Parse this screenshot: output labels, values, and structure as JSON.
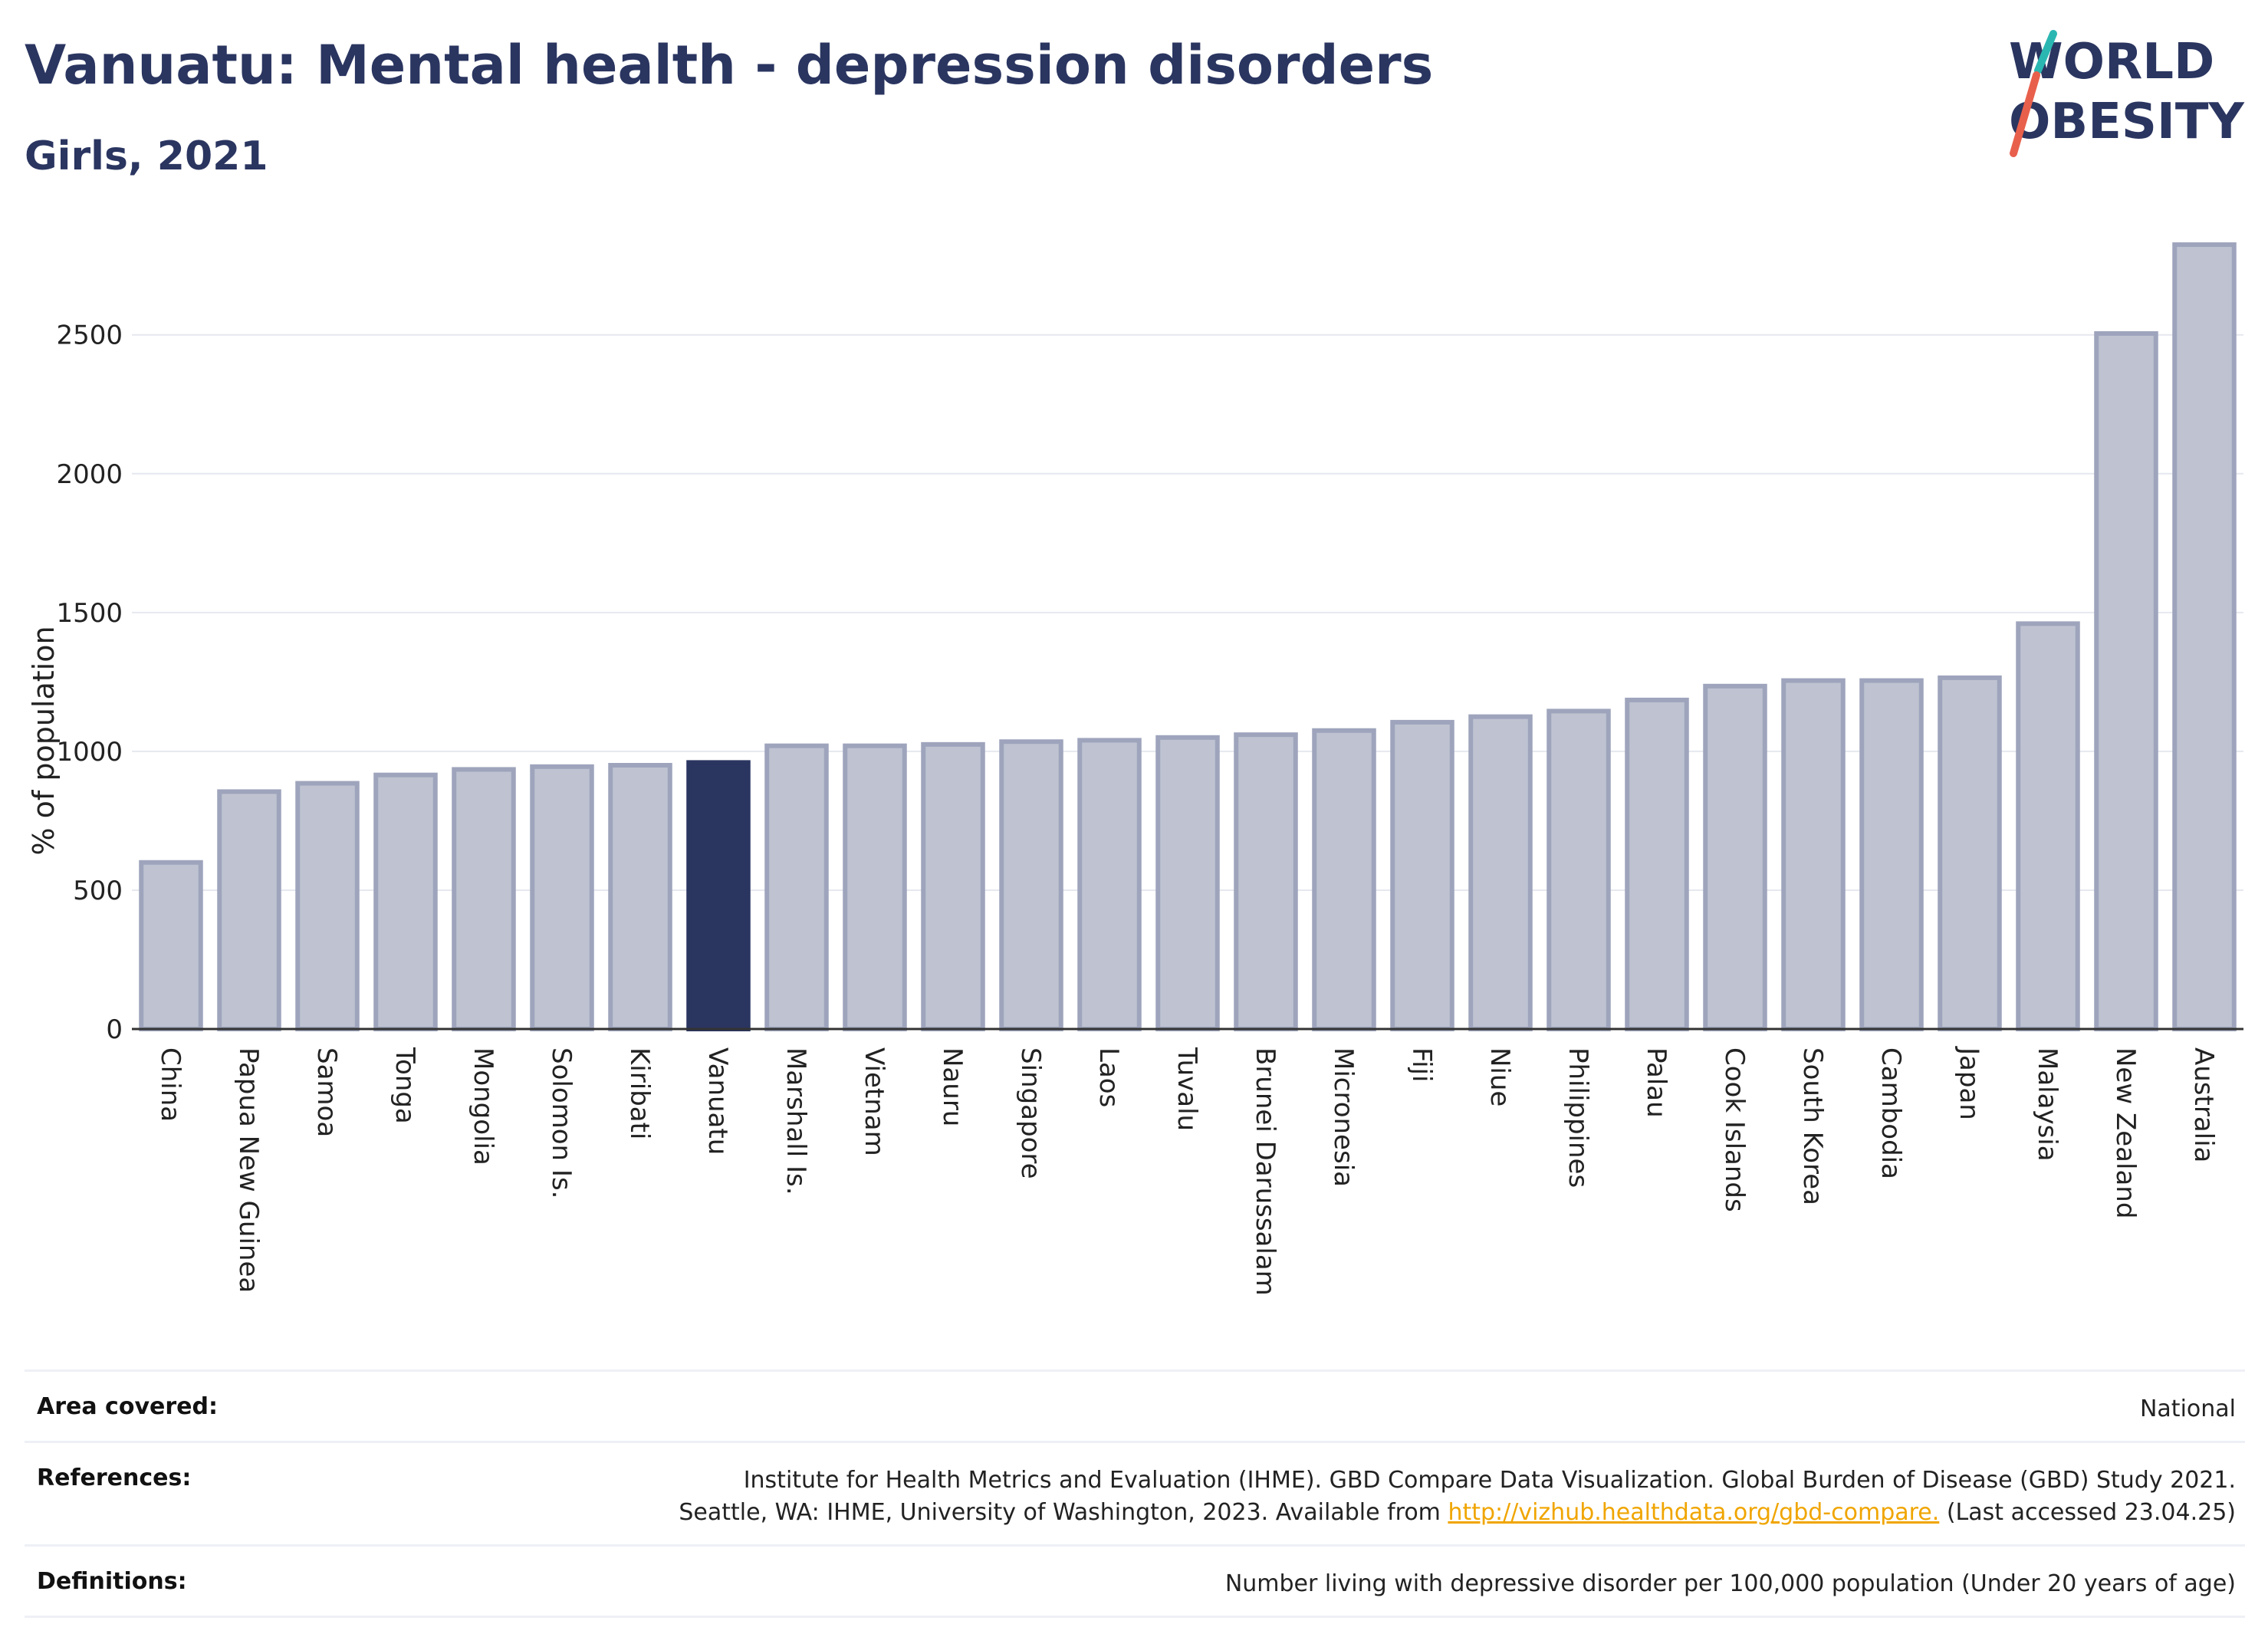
{
  "header": {
    "title": "Vanuatu: Mental health - depression disorders",
    "subtitle": "Girls, 2021"
  },
  "logo": {
    "line1": "WORLD",
    "line2": "OBESITY"
  },
  "colors": {
    "highlight_bar": "#2a3560",
    "other_bar_fill": "#bfc3d1",
    "other_bar_stroke": "#9ea4bc",
    "gridline": "#e6e8ef",
    "axis": "#333333",
    "link": "#f0a500",
    "logo_slash_teal": "#2ab7b2",
    "logo_slash_coral": "#e8604c"
  },
  "chart_data": {
    "type": "bar",
    "title": "Vanuatu: Mental health - depression disorders",
    "subtitle": "Girls, 2021",
    "xlabel": "",
    "ylabel": "% of population",
    "ylim": [
      0,
      2850
    ],
    "yticks": [
      0,
      500,
      1000,
      1500,
      2000,
      2500
    ],
    "grid": true,
    "highlight": "Vanuatu",
    "categories": [
      "China",
      "Papua New Guinea",
      "Samoa",
      "Tonga",
      "Mongolia",
      "Solomon Is.",
      "Kiribati",
      "Vanuatu",
      "Marshall Is.",
      "Vietnam",
      "Nauru",
      "Singapore",
      "Laos",
      "Tuvalu",
      "Brunei Darussalam",
      "Micronesia",
      "Fiji",
      "Niue",
      "Philippines",
      "Palau",
      "Cook Islands",
      "South Korea",
      "Cambodia",
      "Japan",
      "Malaysia",
      "New Zealand",
      "Australia"
    ],
    "values": [
      600,
      855,
      885,
      915,
      935,
      945,
      950,
      960,
      1020,
      1020,
      1025,
      1035,
      1040,
      1050,
      1060,
      1075,
      1105,
      1125,
      1145,
      1185,
      1235,
      1255,
      1255,
      1265,
      1460,
      2505,
      2825
    ]
  },
  "info": {
    "area_label": "Area covered:",
    "area_value": "National",
    "references_label": "References:",
    "references_line1": "Institute for Health Metrics and Evaluation (IHME). GBD Compare Data Visualization. Global Burden of Disease (GBD) Study 2021.",
    "references_line2_pre": "Seattle, WA: IHME, University of Washington, 2023. Available from ",
    "references_link": "http://vizhub.healthdata.org/gbd-compare.",
    "references_line2_post": " (Last accessed 23.04.25)",
    "definitions_label": "Definitions:",
    "definitions_value": "Number living with depressive disorder per 100,000 population (Under 20 years of age)"
  }
}
